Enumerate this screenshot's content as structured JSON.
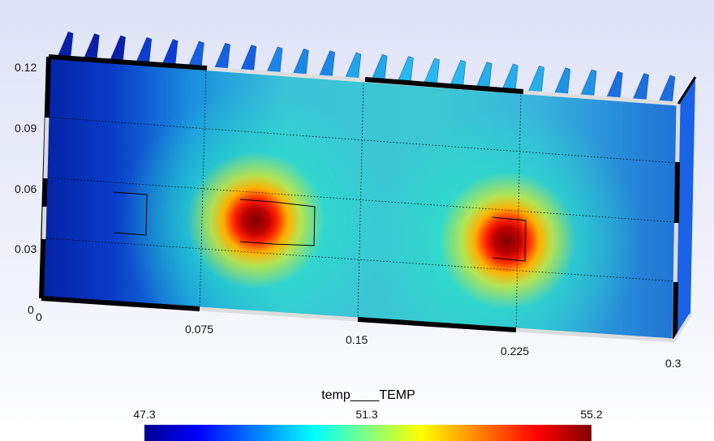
{
  "chart_data": {
    "type": "heatmap",
    "title": "",
    "xlabel": "",
    "ylabel": "",
    "xlim": [
      0,
      0.3
    ],
    "ylim": [
      0,
      0.12
    ],
    "x_ticks": [
      "0",
      "0.075",
      "0.15",
      "0.225",
      "0.3"
    ],
    "y_ticks": [
      "0",
      "0.03",
      "0.06",
      "0.09",
      "0.12"
    ],
    "field_name": "temp____TEMP",
    "color_range": [
      47.3,
      55.2
    ],
    "colorbar_labels": [
      "47.3",
      "51.3",
      "55.2"
    ],
    "colormap": [
      "#00008f",
      "#0000ff",
      "#00ffff",
      "#ffff00",
      "#ff0000",
      "#800000"
    ],
    "hot_spots": [
      {
        "x": 0.1,
        "y": 0.04,
        "peak": 55.2
      },
      {
        "x": 0.225,
        "y": 0.03,
        "peak": 55.2
      }
    ],
    "grid": true,
    "fin_count": 24
  }
}
